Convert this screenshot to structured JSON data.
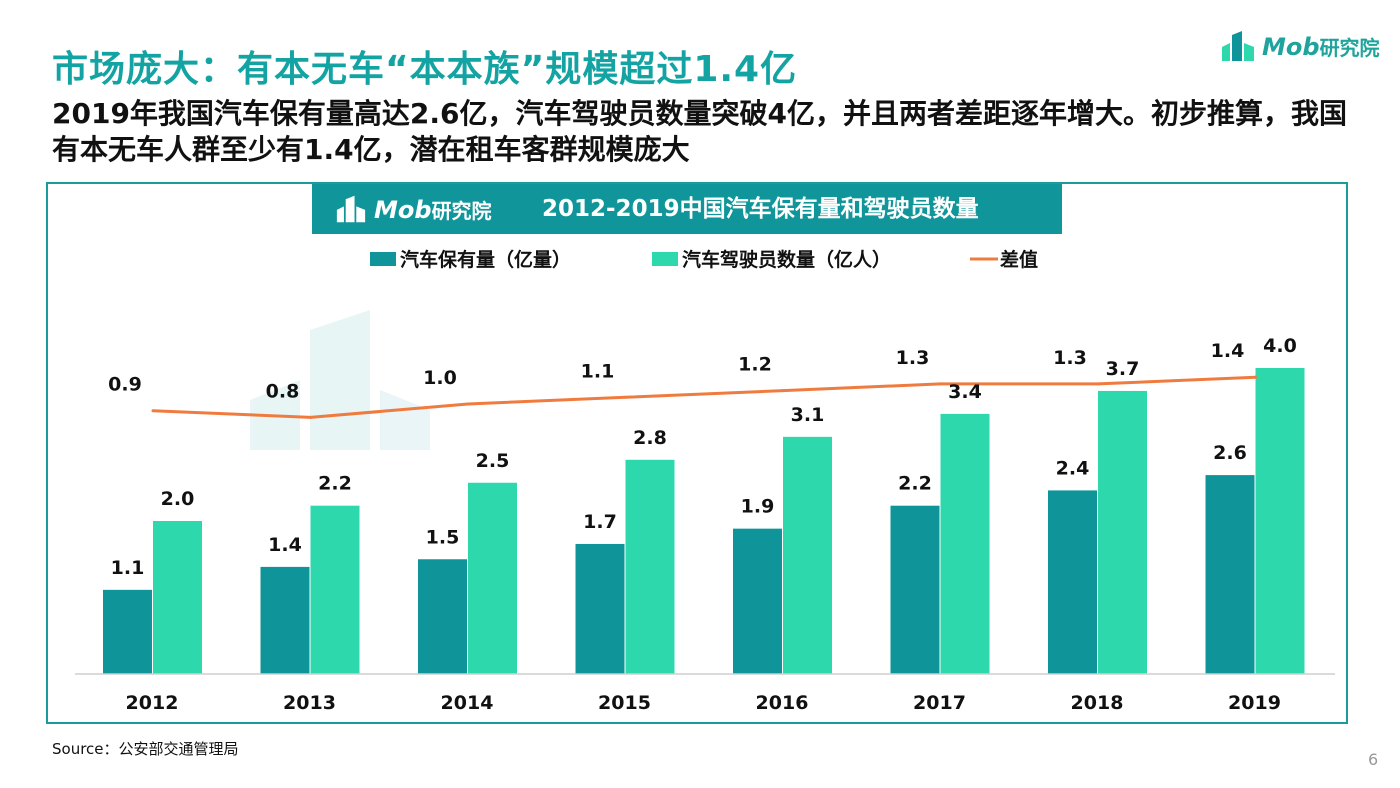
{
  "header": {
    "title": "市场庞大：有本无车“本本族”规模超过1.4亿",
    "subtitle": "2019年我国汽车保有量高达2.6亿，汽车驾驶员数量突破4亿，并且两者差距逐年增大。初步推算，我国有本无车人群至少有1.4亿，潜在租车客群规模庞大"
  },
  "logo": {
    "latin": "Mob",
    "cn": "研究院"
  },
  "footer": {
    "source": "Source：公安部交通管理局",
    "page": "6"
  },
  "colors": {
    "car": "#0f9599",
    "driver": "#2ed8ad",
    "diff": "#f07b3f",
    "accent": "#14a3a3"
  },
  "chart_data": {
    "type": "bar",
    "title": "2012-2019中国汽车保有量和驾驶员数量",
    "categories": [
      "2012",
      "2013",
      "2014",
      "2015",
      "2016",
      "2017",
      "2018",
      "2019"
    ],
    "series": [
      {
        "name": "汽车保有量（亿量）",
        "type": "bar",
        "values": [
          1.1,
          1.4,
          1.5,
          1.7,
          1.9,
          2.2,
          2.4,
          2.6
        ]
      },
      {
        "name": "汽车驾驶员数量（亿人）",
        "type": "bar",
        "values": [
          2.0,
          2.2,
          2.5,
          2.8,
          3.1,
          3.4,
          3.7,
          4.0
        ]
      },
      {
        "name": "差值",
        "type": "line",
        "values": [
          0.9,
          0.8,
          1.0,
          1.1,
          1.2,
          1.3,
          1.3,
          1.4
        ]
      }
    ],
    "ylim": [
      0,
      5.5
    ],
    "grid": false,
    "legend_position": "top"
  }
}
